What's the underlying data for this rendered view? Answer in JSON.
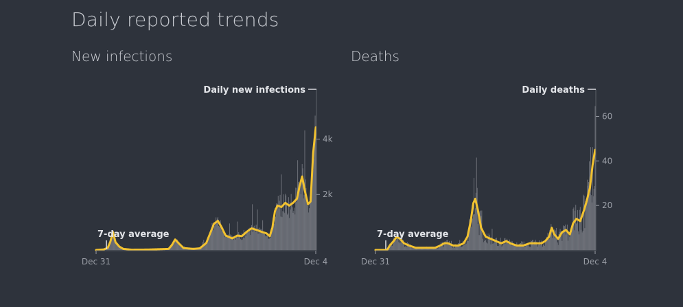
{
  "page": {
    "title": "Daily reported trends"
  },
  "colors": {
    "background": "#2e333c",
    "bars": "#6d7078",
    "average_line": "#f2c230",
    "axis": "#9a9ea6"
  },
  "chart_data": [
    {
      "type": "bar",
      "title": "New infections",
      "series": [
        {
          "name": "Daily new infections",
          "kind": "bar"
        },
        {
          "name": "7-day average",
          "kind": "line"
        }
      ],
      "x_start_label": "Dec 31",
      "x_end_label": "Dec 4",
      "x_days": 339,
      "yticks": [
        2000,
        4000
      ],
      "ytick_labels": [
        "2k",
        "4k"
      ],
      "ylim": [
        0,
        5300
      ],
      "average_key_points": [
        [
          0,
          0
        ],
        [
          12,
          20
        ],
        [
          18,
          80
        ],
        [
          22,
          300
        ],
        [
          26,
          650
        ],
        [
          30,
          280
        ],
        [
          36,
          120
        ],
        [
          42,
          40
        ],
        [
          55,
          10
        ],
        [
          80,
          15
        ],
        [
          112,
          40
        ],
        [
          117,
          180
        ],
        [
          122,
          380
        ],
        [
          128,
          230
        ],
        [
          135,
          70
        ],
        [
          150,
          40
        ],
        [
          160,
          60
        ],
        [
          170,
          250
        ],
        [
          176,
          600
        ],
        [
          182,
          950
        ],
        [
          188,
          1050
        ],
        [
          193,
          850
        ],
        [
          200,
          520
        ],
        [
          210,
          420
        ],
        [
          218,
          520
        ],
        [
          225,
          500
        ],
        [
          232,
          650
        ],
        [
          240,
          780
        ],
        [
          248,
          720
        ],
        [
          256,
          650
        ],
        [
          263,
          600
        ],
        [
          268,
          500
        ],
        [
          272,
          800
        ],
        [
          276,
          1400
        ],
        [
          280,
          1600
        ],
        [
          286,
          1550
        ],
        [
          292,
          1700
        ],
        [
          298,
          1600
        ],
        [
          304,
          1700
        ],
        [
          310,
          1850
        ],
        [
          314,
          2300
        ],
        [
          318,
          2650
        ],
        [
          322,
          2150
        ],
        [
          327,
          1650
        ],
        [
          331,
          1750
        ],
        [
          335,
          3500
        ],
        [
          339,
          4420
        ]
      ],
      "daily_noise": 0.28
    },
    {
      "type": "bar",
      "title": "Deaths",
      "series": [
        {
          "name": "Daily deaths",
          "kind": "bar"
        },
        {
          "name": "7-day average",
          "kind": "line"
        }
      ],
      "x_start_label": "Dec 31",
      "x_end_label": "Dec 4",
      "x_days": 339,
      "yticks": [
        20,
        40,
        60
      ],
      "ytick_labels": [
        "20",
        "40",
        "60"
      ],
      "ylim": [
        0,
        66
      ],
      "average_key_points": [
        [
          0,
          0
        ],
        [
          18,
          0
        ],
        [
          22,
          2
        ],
        [
          28,
          4
        ],
        [
          33,
          6
        ],
        [
          38,
          5
        ],
        [
          44,
          3
        ],
        [
          52,
          2
        ],
        [
          62,
          1
        ],
        [
          78,
          1
        ],
        [
          92,
          1
        ],
        [
          100,
          2
        ],
        [
          106,
          3
        ],
        [
          112,
          3
        ],
        [
          120,
          2
        ],
        [
          128,
          2
        ],
        [
          136,
          3
        ],
        [
          142,
          6
        ],
        [
          147,
          13
        ],
        [
          151,
          21
        ],
        [
          154,
          23
        ],
        [
          158,
          18
        ],
        [
          163,
          10
        ],
        [
          170,
          6
        ],
        [
          178,
          5
        ],
        [
          186,
          4
        ],
        [
          194,
          3
        ],
        [
          202,
          4
        ],
        [
          208,
          3
        ],
        [
          218,
          2
        ],
        [
          228,
          2
        ],
        [
          238,
          3
        ],
        [
          248,
          3
        ],
        [
          256,
          3
        ],
        [
          262,
          4
        ],
        [
          268,
          6
        ],
        [
          272,
          10
        ],
        [
          276,
          7
        ],
        [
          282,
          5
        ],
        [
          288,
          8
        ],
        [
          294,
          9
        ],
        [
          300,
          7
        ],
        [
          305,
          12
        ],
        [
          310,
          14
        ],
        [
          316,
          13
        ],
        [
          322,
          18
        ],
        [
          326,
          22
        ],
        [
          331,
          28
        ],
        [
          335,
          38
        ],
        [
          339,
          45
        ]
      ],
      "daily_noise": 0.55
    }
  ]
}
